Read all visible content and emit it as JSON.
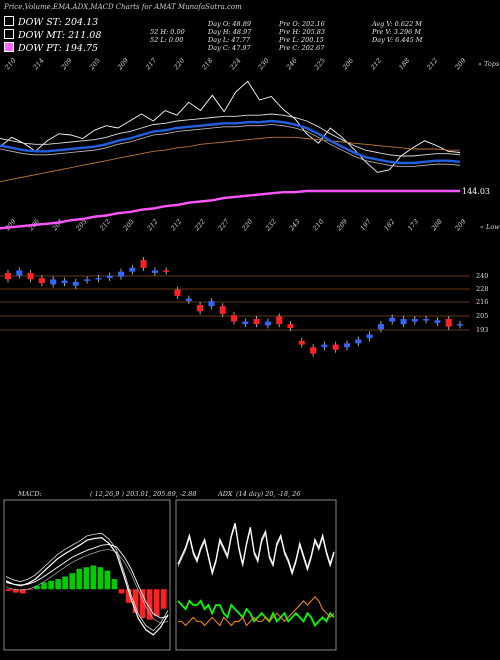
{
  "header": {
    "title": "Price,Volume,EMA,ADX,MACD Charts for AMAT MunafaSutra.com"
  },
  "legend": [
    {
      "label": "DOW ST: 204.13",
      "color": "#000000"
    },
    {
      "label": "DOW MT: 211.08",
      "color": "#000000"
    },
    {
      "label": "DOW PT: 194.75",
      "color": "#ff66ff"
    }
  ],
  "stats": {
    "col1": [
      "52 H: 0.00",
      "52 L: 0.00"
    ],
    "col2": [
      "Day O: 48.89",
      "Day H: 48.97",
      "Day L: 47.77",
      "Day C: 47.97"
    ],
    "col3": [
      "Pre O: 202.16",
      "Pre H: 205.83",
      "Pre L: 200.15",
      "Pre C: 202.67"
    ],
    "col4": [
      "Avg V: 0.622 M",
      "Pre V: 3.296 M",
      "Day V: 6.445 M"
    ]
  },
  "top_labels": [
    "210",
    "214",
    "209",
    "205",
    "209",
    "217",
    "220",
    "218",
    "224",
    "230",
    "246",
    "225",
    "206",
    "212",
    "188",
    "212",
    "209"
  ],
  "top_caption": "« Tops",
  "low_labels": [
    "209",
    "206",
    "204",
    "205",
    "212",
    "205",
    "212",
    "212",
    "222",
    "227",
    "220",
    "232",
    "243",
    "210",
    "209",
    "197",
    "182",
    "173",
    "208",
    "209"
  ],
  "low_caption": "« Lows",
  "price_chart": {
    "last_label": "144.03",
    "levels": [
      "240",
      "228",
      "216",
      "205",
      "193"
    ]
  },
  "macd": {
    "label": "MACD:",
    "params": "( 12,26,9 ) 203.01, 205.89, -2.88"
  },
  "adx": {
    "label": "ADX",
    "params": "(14 day) 20, -18, 26"
  },
  "chart_data": [
    {
      "type": "candlestick",
      "title": "Price,Volume,EMA,ADX,MACD Charts for AMAT MunafaSutra.com",
      "levels": [
        240,
        228,
        216,
        205,
        193
      ],
      "candles": [
        {
          "o": 213,
          "c": 218,
          "dir": "down"
        },
        {
          "o": 216,
          "c": 220,
          "dir": "up"
        },
        {
          "o": 213,
          "c": 218,
          "dir": "down"
        },
        {
          "o": 210,
          "c": 214,
          "dir": "down"
        },
        {
          "o": 209,
          "c": 213,
          "dir": "up"
        },
        {
          "o": 210,
          "c": 212,
          "dir": "up"
        },
        {
          "o": 208,
          "c": 211,
          "dir": "up"
        },
        {
          "o": 212,
          "c": 213,
          "dir": "up"
        },
        {
          "o": 213,
          "c": 214,
          "dir": "up"
        },
        {
          "o": 214,
          "c": 216,
          "dir": "up"
        },
        {
          "o": 215,
          "c": 219,
          "dir": "up"
        },
        {
          "o": 219,
          "c": 222,
          "dir": "up"
        },
        {
          "o": 222,
          "c": 228,
          "dir": "down"
        },
        {
          "o": 218,
          "c": 220,
          "dir": "up"
        },
        {
          "o": 219,
          "c": 220,
          "dir": "down"
        },
        {
          "o": 200,
          "c": 205,
          "dir": "down"
        },
        {
          "o": 196,
          "c": 198,
          "dir": "up"
        },
        {
          "o": 188,
          "c": 193,
          "dir": "down"
        },
        {
          "o": 192,
          "c": 196,
          "dir": "up"
        },
        {
          "o": 186,
          "c": 192,
          "dir": "down"
        },
        {
          "o": 180,
          "c": 185,
          "dir": "down"
        },
        {
          "o": 178,
          "c": 180,
          "dir": "up"
        },
        {
          "o": 178,
          "c": 182,
          "dir": "down"
        },
        {
          "o": 177,
          "c": 180,
          "dir": "up"
        },
        {
          "o": 178,
          "c": 184,
          "dir": "down"
        },
        {
          "o": 175,
          "c": 178,
          "dir": "down"
        },
        {
          "o": 162,
          "c": 165,
          "dir": "down"
        },
        {
          "o": 155,
          "c": 160,
          "dir": "down"
        },
        {
          "o": 160,
          "c": 162,
          "dir": "up"
        },
        {
          "o": 158,
          "c": 162,
          "dir": "down"
        },
        {
          "o": 160,
          "c": 163,
          "dir": "up"
        },
        {
          "o": 163,
          "c": 166,
          "dir": "up"
        },
        {
          "o": 167,
          "c": 170,
          "dir": "up"
        },
        {
          "o": 174,
          "c": 178,
          "dir": "up"
        },
        {
          "o": 180,
          "c": 183,
          "dir": "up"
        },
        {
          "o": 178,
          "c": 182,
          "dir": "up"
        },
        {
          "o": 180,
          "c": 182,
          "dir": "up"
        },
        {
          "o": 181,
          "c": 182,
          "dir": "up"
        },
        {
          "o": 179,
          "c": 181,
          "dir": "up"
        },
        {
          "o": 176,
          "c": 182,
          "dir": "down"
        },
        {
          "o": 177,
          "c": 178,
          "dir": "up"
        }
      ],
      "ema_series": [
        {
          "color": "#1f5fe0",
          "values": [
            201,
            199,
            197,
            196,
            196,
            197,
            198,
            199,
            200,
            202,
            205,
            207,
            210,
            213,
            214,
            216,
            217,
            218,
            219,
            220,
            220,
            221,
            221,
            222,
            221,
            219,
            216,
            211,
            205,
            200,
            195,
            191,
            189,
            187,
            186,
            186,
            187,
            188,
            188,
            187
          ]
        },
        {
          "color": "#ff55ff",
          "values": [
            130,
            131,
            132,
            133,
            134,
            135,
            137,
            138,
            140,
            141,
            143,
            144,
            146,
            147,
            149,
            150,
            152,
            153,
            154,
            156,
            157,
            158,
            159,
            160,
            161,
            161,
            162,
            162,
            162,
            162,
            162,
            162,
            162,
            162,
            162,
            162,
            162,
            162,
            162,
            162
          ]
        }
      ]
    },
    {
      "type": "line",
      "title": "MACD",
      "series": [
        {
          "values": [
            1.0,
            0.6,
            0.4,
            0.7,
            1.2,
            2.0,
            2.8,
            3.6,
            4.2,
            4.7,
            5.2,
            5.8,
            6.0,
            6.1,
            5.4,
            4.2,
            1.6,
            -1.2,
            -3.5,
            -4.8,
            -5.4,
            -4.5,
            -3.0
          ]
        },
        {
          "values": [
            0.8,
            0.6,
            0.5,
            0.6,
            0.9,
            1.4,
            2.0,
            2.6,
            3.2,
            3.8,
            4.2,
            4.6,
            4.9,
            5.2,
            5.3,
            5.0,
            3.9,
            2.4,
            0.4,
            -1.5,
            -2.9,
            -3.4,
            -3.2
          ]
        }
      ],
      "histogram": [
        -0.2,
        -0.4,
        -0.5,
        -0.1,
        0.4,
        0.8,
        1.0,
        1.2,
        1.5,
        1.9,
        2.4,
        2.6,
        2.8,
        2.6,
        2.2,
        1.2,
        -0.5,
        -1.6,
        -2.8,
        -3.4,
        -3.6,
        -3.2,
        -2.3
      ]
    },
    {
      "type": "line",
      "title": "ADX",
      "series": [
        {
          "color": "#ffffff",
          "values": [
            26,
            28,
            30,
            33,
            29,
            27,
            30,
            32,
            28,
            24,
            27,
            32,
            30,
            28,
            33,
            36,
            30,
            26,
            31,
            35,
            29,
            27,
            32,
            34,
            28,
            26,
            31,
            33,
            29,
            27,
            24,
            27,
            31,
            28,
            25,
            28,
            32,
            30,
            33,
            29,
            26,
            29
          ]
        },
        {
          "color": "#00ff00",
          "values": [
            17,
            16,
            15,
            17,
            16,
            16,
            17,
            15,
            16,
            14,
            16,
            16,
            14,
            13,
            16,
            15,
            14,
            13,
            15,
            14,
            12,
            13,
            14,
            13,
            12,
            14,
            12,
            13,
            14,
            12,
            13,
            14,
            13,
            12,
            14,
            13,
            11,
            12,
            13,
            12,
            14,
            13
          ]
        },
        {
          "color": "#ff8c00",
          "values": [
            12,
            12,
            11,
            12,
            13,
            12,
            12,
            11,
            12,
            13,
            12,
            11,
            13,
            12,
            11,
            12,
            12,
            13,
            11,
            12,
            13,
            12,
            12,
            13,
            12,
            13,
            14,
            13,
            12,
            13,
            14,
            15,
            16,
            17,
            16,
            17,
            18,
            17,
            15,
            14,
            13,
            14
          ]
        }
      ]
    }
  ]
}
